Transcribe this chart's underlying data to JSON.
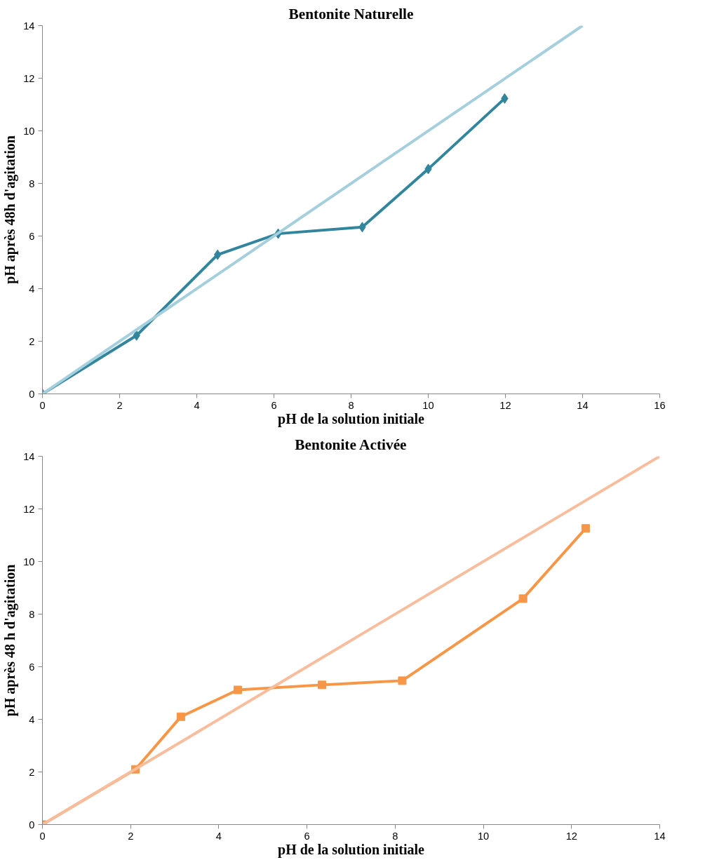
{
  "chart_data": [
    {
      "type": "line",
      "title": "Bentonite Naturelle",
      "xlabel": "pH de la solution initiale",
      "ylabel": "pH après 48h d'agitation",
      "xlim": [
        0,
        16
      ],
      "ylim": [
        0,
        14
      ],
      "xticks": [
        0,
        2,
        4,
        6,
        8,
        10,
        12,
        14,
        16
      ],
      "yticks": [
        0,
        2,
        4,
        6,
        8,
        10,
        12,
        14
      ],
      "grid": false,
      "series": [
        {
          "color": "#31859c",
          "marker": "diamond",
          "x": [
            0,
            2.44,
            4.54,
            6.11,
            8.29,
            10.0,
            11.98
          ],
          "values": [
            0,
            2.22,
            5.29,
            6.09,
            6.34,
            8.55,
            11.23
          ]
        },
        {
          "color": "#a5cfdc",
          "marker": "none",
          "x": [
            0,
            14
          ],
          "values": [
            0,
            14
          ]
        }
      ]
    },
    {
      "type": "line",
      "title": "Bentonite Activée",
      "xlabel": "pH de la solution initiale",
      "ylabel": "pH après 48 h d'agitation",
      "xlim": [
        0,
        14
      ],
      "ylim": [
        0,
        14
      ],
      "xticks": [
        0,
        2,
        4,
        6,
        8,
        10,
        12,
        14
      ],
      "yticks": [
        0,
        2,
        4,
        6,
        8,
        10,
        12,
        14
      ],
      "grid": false,
      "series": [
        {
          "color": "#f79646",
          "marker": "square",
          "x": [
            0,
            2.11,
            3.14,
            4.43,
            6.34,
            8.16,
            10.9,
            12.32
          ],
          "values": [
            0,
            2.1,
            4.1,
            5.12,
            5.31,
            5.47,
            8.59,
            11.26
          ]
        },
        {
          "color": "#f8bd9c",
          "marker": "none",
          "x": [
            0,
            14
          ],
          "values": [
            0,
            14
          ]
        }
      ]
    }
  ]
}
